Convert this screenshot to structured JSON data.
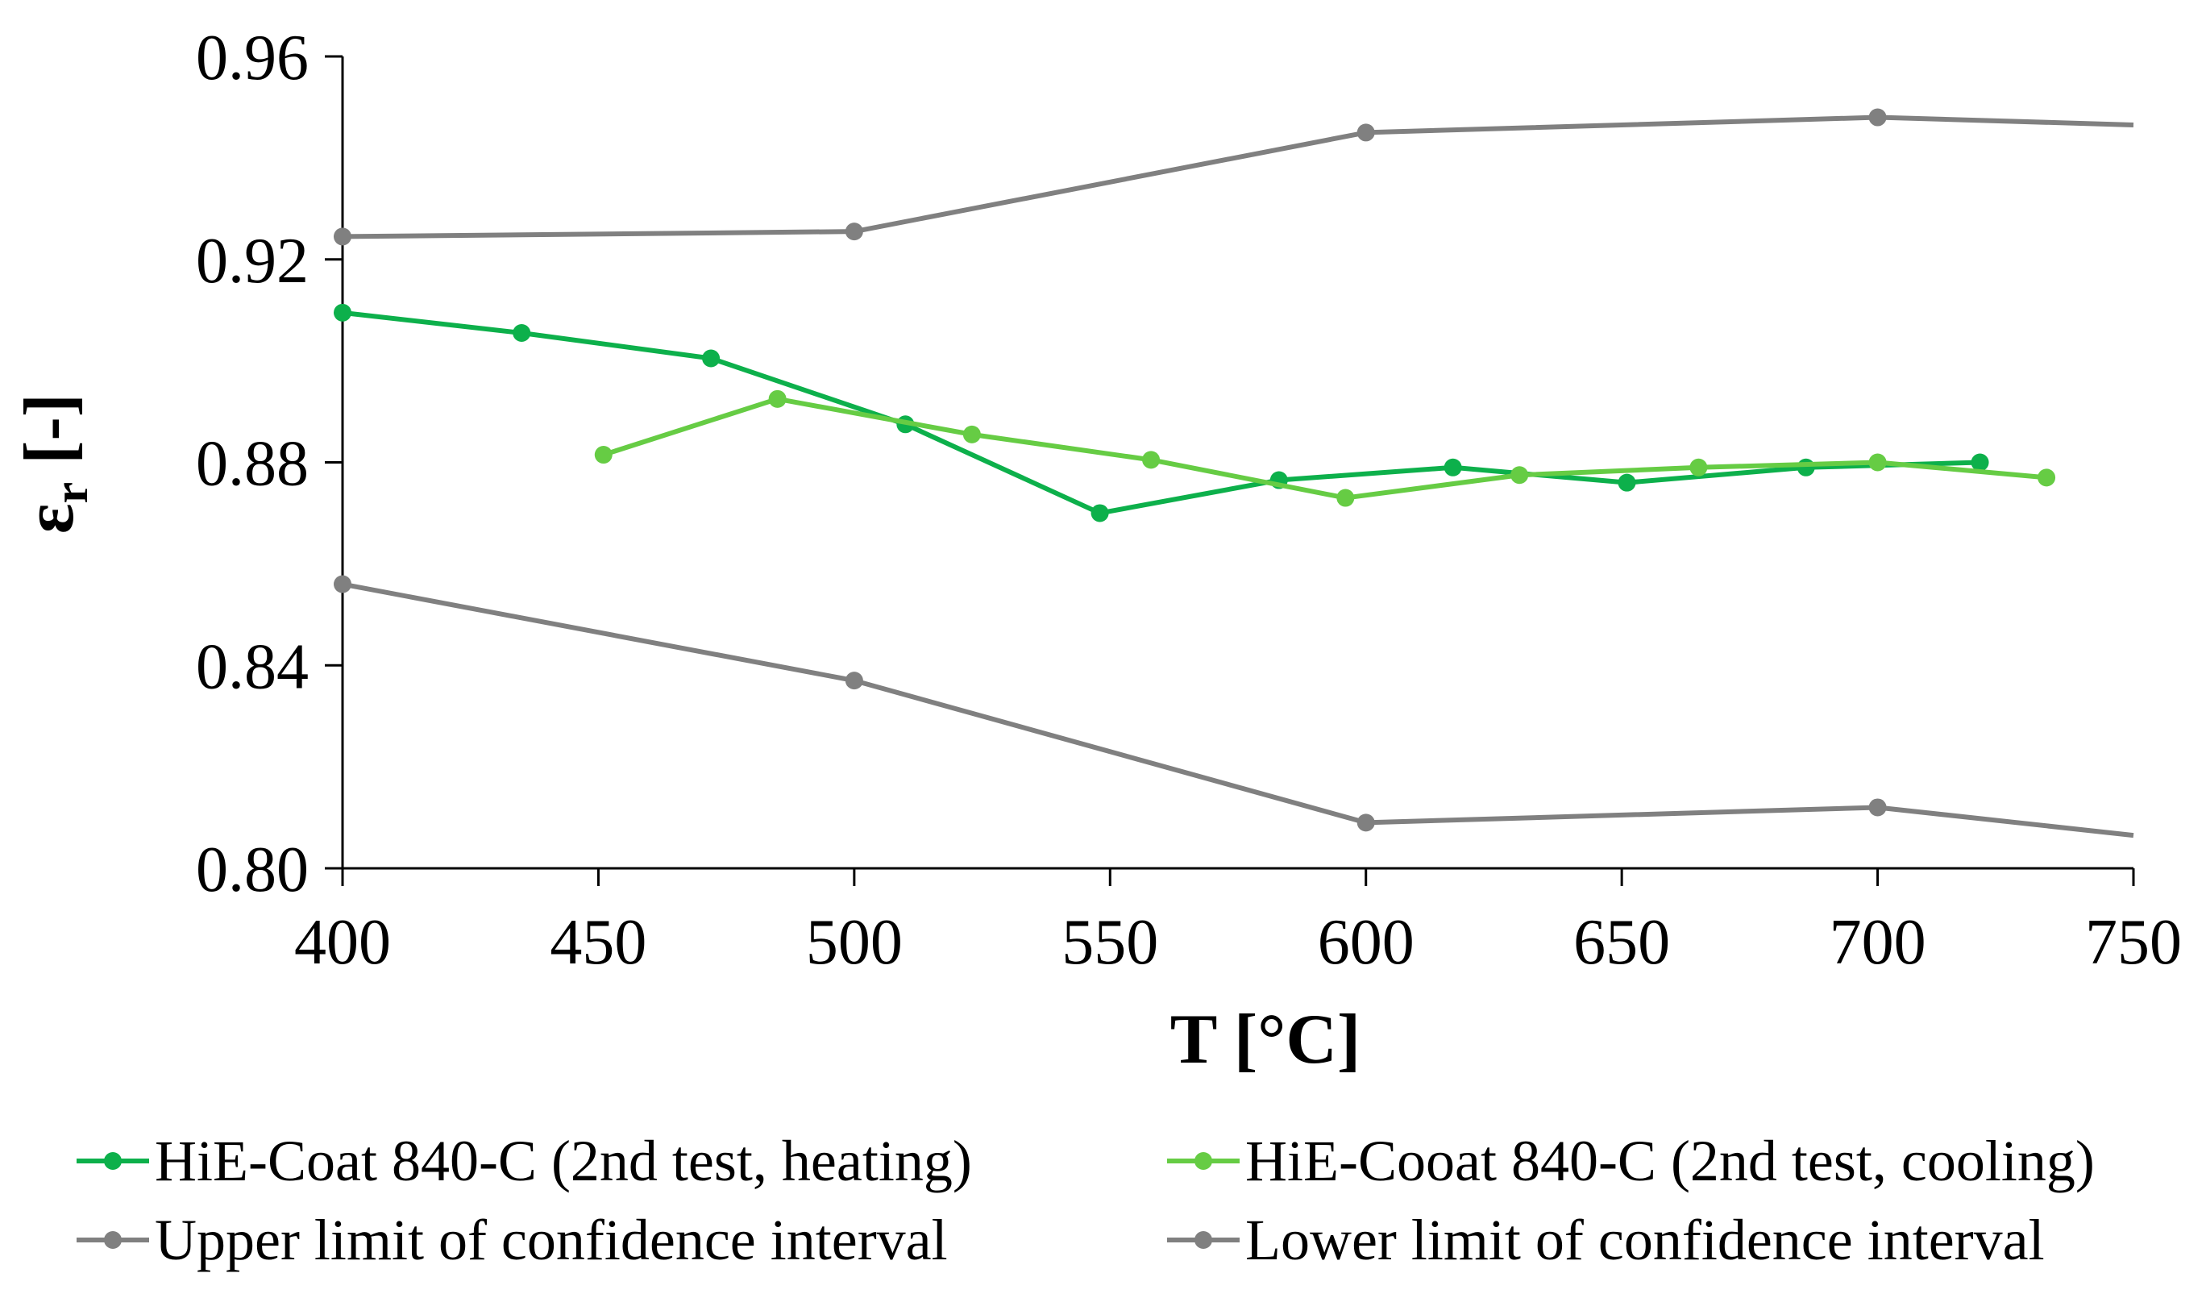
{
  "chart_data": {
    "type": "line",
    "title": "",
    "xlabel": "T [°C]",
    "ylabel_symbol": "ε",
    "ylabel_sub": "r",
    "ylabel_unit": " [-]",
    "xlim": [
      400,
      750
    ],
    "ylim": [
      0.8,
      0.96
    ],
    "x_ticks": [
      400,
      450,
      500,
      550,
      600,
      650,
      700,
      750
    ],
    "y_ticks": [
      0.8,
      0.84,
      0.88,
      0.92,
      0.96
    ],
    "x_tick_labels": [
      "400",
      "450",
      "500",
      "550",
      "600",
      "650",
      "700",
      "750"
    ],
    "y_tick_labels": [
      "0.80",
      "0.84",
      "0.88",
      "0.92",
      "0.96"
    ],
    "grid": false,
    "legend_position": "bottom",
    "series": [
      {
        "name": "HiE-Coat 840-C (2nd test, heating)",
        "color": "#0DB04B",
        "x": [
          400,
          435,
          472,
          510,
          548,
          583,
          617,
          651,
          686,
          720
        ],
        "y": [
          0.9095,
          0.9055,
          0.9005,
          0.8875,
          0.87,
          0.8765,
          0.879,
          0.876,
          0.879,
          0.88
        ]
      },
      {
        "name": "HiE-Cooat 840-C (2nd test, cooling)",
        "color": "#66CC44",
        "x": [
          451,
          485,
          523,
          558,
          596,
          630,
          665,
          700,
          733
        ],
        "y": [
          0.8815,
          0.8925,
          0.8855,
          0.8805,
          0.873,
          0.8775,
          0.879,
          0.88,
          0.877
        ]
      },
      {
        "name": "Upper limit of confidence interval",
        "color": "#808080",
        "x": [
          400,
          500,
          600,
          700,
          750
        ],
        "y": [
          0.9245,
          0.9255,
          0.945,
          0.948,
          0.9465
        ],
        "markers": [
          true,
          true,
          true,
          true,
          false
        ]
      },
      {
        "name": "Lower limit of confidence interval",
        "color": "#808080",
        "x": [
          400,
          500,
          600,
          700,
          750
        ],
        "y": [
          0.856,
          0.837,
          0.809,
          0.812,
          0.8065
        ],
        "markers": [
          true,
          true,
          true,
          true,
          false
        ]
      }
    ]
  }
}
